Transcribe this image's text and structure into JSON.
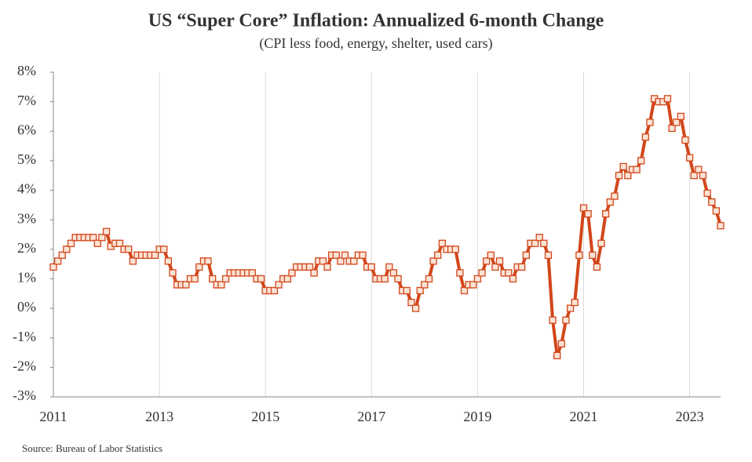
{
  "chart_data": {
    "type": "line",
    "title": "US “Super Core” Inflation: Annualized 6-month Change",
    "subtitle": "(CPI less food, energy, shelter, used cars)",
    "source": "Source: Bureau of Labor Statistics",
    "categories": [
      "2011",
      null,
      null,
      null,
      null,
      null,
      null,
      null,
      null,
      null,
      null,
      null,
      null,
      null,
      null,
      null,
      null,
      null,
      null,
      null,
      null,
      null,
      null,
      null,
      "2013",
      null,
      null,
      null,
      null,
      null,
      null,
      null,
      null,
      null,
      null,
      null,
      null,
      null,
      null,
      null,
      null,
      null,
      null,
      null,
      null,
      null,
      null,
      null,
      "2015",
      null,
      null,
      null,
      null,
      null,
      null,
      null,
      null,
      null,
      null,
      null,
      null,
      null,
      null,
      null,
      null,
      null,
      null,
      null,
      null,
      null,
      null,
      null,
      "2017",
      null,
      null,
      null,
      null,
      null,
      null,
      null,
      null,
      null,
      null,
      null,
      null,
      null,
      null,
      null,
      null,
      null,
      null,
      null,
      null,
      null,
      null,
      null,
      "2019",
      null,
      null,
      null,
      null,
      null,
      null,
      null,
      null,
      null,
      null,
      null,
      null,
      null,
      null,
      null,
      null,
      null,
      null,
      null,
      null,
      null,
      null,
      null,
      "2021",
      null,
      null,
      null,
      null,
      null,
      null,
      null,
      null,
      null,
      null,
      null,
      null,
      null,
      null,
      null,
      null,
      null,
      null,
      null,
      null,
      null,
      null,
      null,
      "2023",
      null,
      null,
      null,
      null,
      null,
      null,
      null
    ],
    "series": [
      {
        "color": "#d2461a",
        "marker_fill": "#fbe3d6",
        "values": [
          1.4,
          1.6,
          1.8,
          2.0,
          2.2,
          2.4,
          2.4,
          2.4,
          2.4,
          2.4,
          2.2,
          2.4,
          2.6,
          2.1,
          2.2,
          2.2,
          2.0,
          2.0,
          1.6,
          1.8,
          1.8,
          1.8,
          1.8,
          1.8,
          2.0,
          2.0,
          1.6,
          1.2,
          0.8,
          0.8,
          0.8,
          1.0,
          1.0,
          1.4,
          1.6,
          1.6,
          1.0,
          0.8,
          0.8,
          1.0,
          1.2,
          1.2,
          1.2,
          1.2,
          1.2,
          1.2,
          1.0,
          1.0,
          0.6,
          0.6,
          0.6,
          0.8,
          1.0,
          1.0,
          1.2,
          1.4,
          1.4,
          1.4,
          1.4,
          1.2,
          1.6,
          1.6,
          1.4,
          1.8,
          1.8,
          1.6,
          1.8,
          1.6,
          1.6,
          1.8,
          1.8,
          1.4,
          1.4,
          1.0,
          1.0,
          1.0,
          1.4,
          1.2,
          1.0,
          0.6,
          0.6,
          0.2,
          0.0,
          0.6,
          0.8,
          1.0,
          1.6,
          1.8,
          2.2,
          2.0,
          2.0,
          2.0,
          1.2,
          0.6,
          0.8,
          0.8,
          1.0,
          1.2,
          1.6,
          1.8,
          1.4,
          1.6,
          1.2,
          1.2,
          1.0,
          1.4,
          1.4,
          1.8,
          2.2,
          2.2,
          2.4,
          2.2,
          1.8,
          -0.4,
          -1.6,
          -1.2,
          -0.4,
          0.0,
          0.2,
          1.8,
          3.4,
          3.2,
          1.8,
          1.4,
          2.2,
          3.2,
          3.6,
          3.8,
          4.5,
          4.8,
          4.5,
          4.7,
          4.7,
          5.0,
          5.8,
          6.3,
          7.1,
          7.0,
          7.0,
          7.1,
          6.1,
          6.3,
          6.5,
          5.7,
          5.1,
          4.5,
          4.7,
          4.5,
          3.9,
          3.6,
          3.3,
          2.8
        ]
      }
    ],
    "ylim": [
      -3,
      8
    ],
    "yticks": [
      {
        "value": -3,
        "label": "-3%"
      },
      {
        "value": -2,
        "label": "-2%"
      },
      {
        "value": -1,
        "label": "-1%"
      },
      {
        "value": 0,
        "label": "0%"
      },
      {
        "value": 1,
        "label": "1%"
      },
      {
        "value": 2,
        "label": "2%"
      },
      {
        "value": 3,
        "label": "3%"
      },
      {
        "value": 4,
        "label": "4%"
      },
      {
        "value": 5,
        "label": "5%"
      },
      {
        "value": 6,
        "label": "6%"
      },
      {
        "value": 7,
        "label": "7%"
      },
      {
        "value": 8,
        "label": "8%"
      }
    ],
    "grid": true
  }
}
